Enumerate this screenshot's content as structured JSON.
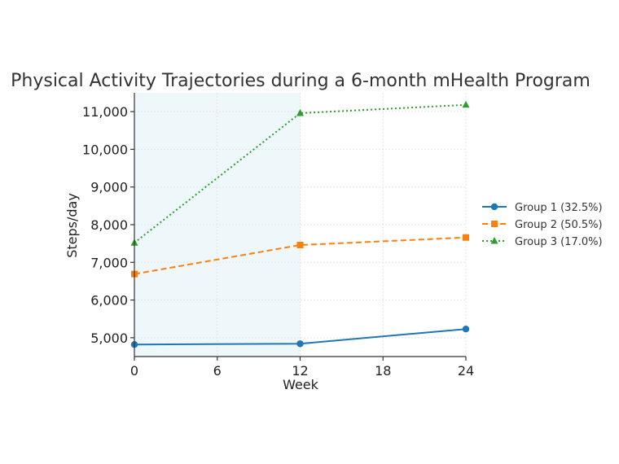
{
  "chart_data": {
    "type": "line",
    "title": "Physical Activity Trajectories during a 6-month mHealth Program",
    "xlabel": "Week",
    "ylabel": "Steps/day",
    "x": [
      0,
      12,
      24
    ],
    "xticks": [
      0,
      6,
      12,
      18,
      24
    ],
    "xtick_labels": [
      "0",
      "6",
      "12",
      "18",
      "24"
    ],
    "yticks": [
      5000,
      6000,
      7000,
      8000,
      9000,
      10000,
      11000
    ],
    "ytick_labels": [
      "5,000",
      "6,000",
      "7,000",
      "8,000",
      "9,000",
      "10,000",
      "11,000"
    ],
    "xlim": [
      0,
      24
    ],
    "ylim": [
      4500,
      11500
    ],
    "grid": true,
    "shaded_region": {
      "x_start": 0,
      "x_end": 12,
      "color": "#eef7fa"
    },
    "legend_position": "right",
    "series": [
      {
        "name": "Group 1 (32.5%)",
        "values": [
          4820,
          4840,
          5230
        ],
        "color": "#1f77b4",
        "marker": "circle",
        "line_style": "solid"
      },
      {
        "name": "Group 2 (50.5%)",
        "values": [
          6690,
          7460,
          7660
        ],
        "color": "#ff7f0e",
        "marker": "square",
        "line_style": "dashed"
      },
      {
        "name": "Group 3 (17.0%)",
        "values": [
          7520,
          10960,
          11180
        ],
        "color": "#2ca02c",
        "marker": "triangle",
        "line_style": "dotted"
      }
    ]
  }
}
